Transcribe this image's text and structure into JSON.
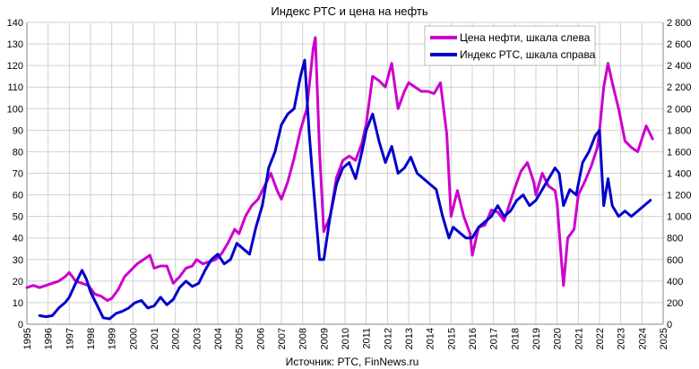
{
  "chart_data": {
    "type": "line",
    "title": "Индекс РТС и цена на нефть",
    "source": "Источник: РТС, FinNews.ru",
    "colors": {
      "oil": "#cc00cc",
      "rts": "#0000cc"
    },
    "x_ticks": [
      "1995",
      "1996",
      "1997",
      "1998",
      "1999",
      "2000",
      "2001",
      "2002",
      "2003",
      "2004",
      "2005",
      "2006",
      "2007",
      "2008",
      "2009",
      "2010",
      "2011",
      "2012",
      "2013",
      "2014",
      "2015",
      "2016",
      "2017",
      "2018",
      "2019",
      "2020",
      "2021",
      "2022",
      "2023",
      "2024",
      "2025"
    ],
    "xlim": [
      1995,
      2025
    ],
    "y_left": {
      "ylim": [
        0,
        140
      ],
      "ticks": [
        "0",
        "10",
        "20",
        "30",
        "40",
        "50",
        "60",
        "70",
        "80",
        "90",
        "100",
        "110",
        "120",
        "130",
        "140"
      ]
    },
    "y_right": {
      "ylim": [
        0,
        2800
      ],
      "ticks": [
        "0",
        "200",
        "400",
        "600",
        "800",
        "1 000",
        "1 200",
        "1 400",
        "1 600",
        "1 800",
        "2 000",
        "2 200",
        "2 400",
        "2 600",
        "2 800"
      ]
    },
    "legend_position": "top-right",
    "series": [
      {
        "name": "Цена нефти, шкала слева",
        "axis": "left",
        "color": "#cc00cc",
        "x": [
          1995.0,
          1995.3,
          1995.6,
          1995.9,
          1996.2,
          1996.5,
          1996.8,
          1997.0,
          1997.3,
          1997.6,
          1997.9,
          1998.2,
          1998.5,
          1998.8,
          1999.0,
          1999.3,
          1999.6,
          1999.9,
          2000.2,
          2000.5,
          2000.8,
          2001.0,
          2001.3,
          2001.6,
          2001.9,
          2002.2,
          2002.5,
          2002.8,
          2003.0,
          2003.3,
          2003.6,
          2003.9,
          2004.2,
          2004.5,
          2004.8,
          2005.0,
          2005.3,
          2005.6,
          2005.9,
          2006.2,
          2006.5,
          2006.8,
          2007.0,
          2007.3,
          2007.6,
          2007.9,
          2008.2,
          2008.5,
          2008.6,
          2008.8,
          2009.0,
          2009.3,
          2009.6,
          2009.9,
          2010.2,
          2010.5,
          2010.8,
          2011.0,
          2011.3,
          2011.6,
          2011.9,
          2012.2,
          2012.5,
          2012.8,
          2013.0,
          2013.3,
          2013.6,
          2013.9,
          2014.2,
          2014.5,
          2014.8,
          2015.0,
          2015.3,
          2015.6,
          2015.9,
          2016.0,
          2016.3,
          2016.6,
          2016.9,
          2017.2,
          2017.5,
          2017.8,
          2018.0,
          2018.3,
          2018.6,
          2018.9,
          2019.0,
          2019.3,
          2019.6,
          2019.9,
          2020.0,
          2020.2,
          2020.3,
          2020.5,
          2020.8,
          2021.0,
          2021.3,
          2021.6,
          2021.9,
          2022.0,
          2022.2,
          2022.4,
          2022.6,
          2022.9,
          2023.2,
          2023.5,
          2023.8,
          2024.0,
          2024.2,
          2024.5
        ],
        "values": [
          17,
          18,
          17,
          18,
          19,
          20,
          22,
          24,
          20,
          19,
          18,
          14,
          13,
          11,
          12,
          16,
          22,
          25,
          28,
          30,
          32,
          26,
          27,
          27,
          19,
          22,
          26,
          27,
          30,
          28,
          29,
          30,
          33,
          38,
          44,
          42,
          50,
          55,
          58,
          64,
          70,
          62,
          58,
          66,
          77,
          90,
          100,
          128,
          133,
          80,
          43,
          50,
          68,
          76,
          78,
          76,
          84,
          93,
          115,
          113,
          110,
          121,
          100,
          108,
          112,
          110,
          108,
          108,
          107,
          112,
          88,
          50,
          62,
          50,
          42,
          32,
          45,
          46,
          53,
          52,
          48,
          57,
          63,
          71,
          75,
          66,
          60,
          70,
          64,
          62,
          56,
          30,
          18,
          40,
          44,
          60,
          66,
          73,
          82,
          90,
          110,
          121,
          112,
          100,
          85,
          82,
          80,
          86,
          92,
          86
        ]
      },
      {
        "name": "Индекс РТС, шкала справа",
        "axis": "right",
        "color": "#0000cc",
        "x": [
          1995.6,
          1995.9,
          1996.2,
          1996.5,
          1996.8,
          1997.0,
          1997.3,
          1997.6,
          1997.8,
          1998.0,
          1998.3,
          1998.6,
          1998.9,
          1999.2,
          1999.5,
          1999.8,
          2000.1,
          2000.4,
          2000.7,
          2001.0,
          2001.3,
          2001.6,
          2001.9,
          2002.2,
          2002.5,
          2002.8,
          2003.1,
          2003.4,
          2003.7,
          2004.0,
          2004.3,
          2004.6,
          2004.9,
          2005.2,
          2005.5,
          2005.8,
          2006.1,
          2006.4,
          2006.7,
          2007.0,
          2007.3,
          2007.6,
          2007.9,
          2008.1,
          2008.3,
          2008.5,
          2008.8,
          2009.0,
          2009.3,
          2009.6,
          2009.9,
          2010.2,
          2010.5,
          2010.8,
          2011.0,
          2011.3,
          2011.6,
          2011.9,
          2012.2,
          2012.5,
          2012.8,
          2013.1,
          2013.4,
          2013.7,
          2014.0,
          2014.3,
          2014.6,
          2014.9,
          2015.1,
          2015.4,
          2015.7,
          2016.0,
          2016.3,
          2016.6,
          2016.9,
          2017.2,
          2017.5,
          2017.8,
          2018.1,
          2018.4,
          2018.7,
          2019.0,
          2019.3,
          2019.6,
          2019.9,
          2020.1,
          2020.3,
          2020.6,
          2020.9,
          2021.2,
          2021.5,
          2021.8,
          2022.0,
          2022.2,
          2022.4,
          2022.6,
          2022.9,
          2023.2,
          2023.5,
          2023.8,
          2024.1,
          2024.4
        ],
        "values": [
          80,
          70,
          80,
          150,
          200,
          250,
          380,
          500,
          420,
          300,
          180,
          60,
          50,
          100,
          120,
          150,
          200,
          220,
          150,
          170,
          250,
          180,
          230,
          340,
          400,
          350,
          380,
          500,
          600,
          650,
          560,
          600,
          750,
          700,
          650,
          900,
          1100,
          1450,
          1600,
          1850,
          1950,
          2000,
          2300,
          2450,
          1800,
          1300,
          600,
          600,
          1000,
          1300,
          1450,
          1500,
          1350,
          1600,
          1800,
          1950,
          1700,
          1500,
          1650,
          1400,
          1450,
          1550,
          1400,
          1350,
          1300,
          1250,
          1000,
          800,
          900,
          850,
          800,
          800,
          900,
          950,
          1000,
          1100,
          1000,
          1050,
          1150,
          1200,
          1100,
          1150,
          1250,
          1350,
          1450,
          1400,
          1100,
          1250,
          1200,
          1500,
          1600,
          1750,
          1800,
          1100,
          1350,
          1100,
          1000,
          1050,
          1000,
          1050,
          1100,
          1150
        ]
      }
    ]
  }
}
